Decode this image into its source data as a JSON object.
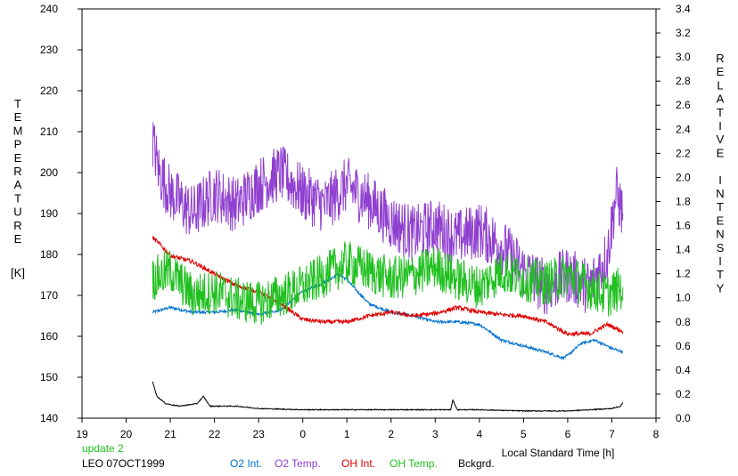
{
  "chart_data": {
    "type": "line",
    "xlabel": "Local Standard Time [h]",
    "ylabel_left": "TEMPERATURE",
    "ylabel_left_unit": "[K]",
    "ylabel_right": "RELATIVE INTENSITY",
    "x_ticks": [
      "19",
      "20",
      "21",
      "22",
      "23",
      "0",
      "1",
      "2",
      "3",
      "4",
      "5",
      "6",
      "7",
      "8"
    ],
    "y_left_ticks": [
      "140",
      "150",
      "160",
      "170",
      "180",
      "190",
      "200",
      "210",
      "220",
      "230",
      "240"
    ],
    "y_right_ticks": [
      "0.0",
      "0.2",
      "0.4",
      "0.6",
      "0.8",
      "1.0",
      "1.2",
      "1.4",
      "1.6",
      "1.8",
      "2.0",
      "2.2",
      "2.4",
      "2.6",
      "2.8",
      "3.0",
      "3.2",
      "3.4"
    ],
    "xlim": [
      19,
      32
    ],
    "ylim_left": [
      140,
      240
    ],
    "ylim_right": [
      0,
      3.4
    ],
    "series": [
      {
        "name": "O2 Int.",
        "axis": "right",
        "color": "#0070d0",
        "x": [
          20.6,
          21.0,
          21.5,
          22.0,
          22.5,
          23.0,
          23.5,
          24.0,
          24.5,
          24.8,
          25.0,
          25.5,
          26.0,
          26.5,
          27.0,
          27.5,
          28.0,
          28.5,
          29.0,
          29.5,
          29.9,
          30.0,
          30.3,
          30.6,
          31.0,
          31.25
        ],
        "y": [
          0.88,
          0.92,
          0.88,
          0.88,
          0.9,
          0.86,
          0.9,
          1.05,
          1.13,
          1.2,
          1.15,
          0.95,
          0.88,
          0.85,
          0.8,
          0.8,
          0.78,
          0.65,
          0.6,
          0.55,
          0.5,
          0.52,
          0.62,
          0.65,
          0.58,
          0.55
        ]
      },
      {
        "name": "O2 Temp.",
        "axis": "left",
        "color": "#9040d0",
        "x": [
          20.6,
          20.75,
          21.0,
          21.5,
          22.0,
          22.5,
          23.0,
          23.5,
          24.0,
          24.5,
          25.0,
          25.5,
          26.0,
          26.5,
          27.0,
          27.5,
          28.0,
          28.5,
          29.0,
          29.5,
          30.0,
          30.5,
          30.9,
          31.1,
          31.25
        ],
        "y": [
          208,
          200,
          195,
          190,
          195,
          192,
          197,
          200,
          195,
          192,
          197,
          193,
          188,
          185,
          187,
          184,
          186,
          182,
          176,
          172,
          175,
          172,
          180,
          195,
          190
        ]
      },
      {
        "name": "OH Int.",
        "axis": "right",
        "color": "#e00000",
        "x": [
          20.6,
          20.75,
          21.0,
          21.5,
          22.0,
          22.5,
          23.0,
          23.5,
          24.0,
          24.5,
          25.0,
          25.5,
          26.0,
          26.5,
          27.0,
          27.5,
          28.0,
          28.5,
          29.0,
          29.5,
          30.0,
          30.5,
          30.9,
          31.25
        ],
        "y": [
          1.5,
          1.45,
          1.35,
          1.3,
          1.2,
          1.1,
          1.05,
          0.95,
          0.82,
          0.8,
          0.8,
          0.85,
          0.88,
          0.85,
          0.87,
          0.92,
          0.88,
          0.86,
          0.85,
          0.8,
          0.7,
          0.7,
          0.78,
          0.72
        ]
      },
      {
        "name": "OH Temp.",
        "axis": "left",
        "color": "#20c020",
        "x": [
          20.6,
          21.0,
          21.5,
          22.0,
          22.5,
          23.0,
          23.5,
          24.0,
          24.5,
          25.0,
          25.5,
          26.0,
          26.5,
          27.0,
          27.5,
          28.0,
          28.5,
          29.0,
          29.5,
          30.0,
          30.5,
          30.9,
          31.25
        ],
        "y": [
          174,
          176,
          170,
          171,
          169,
          168,
          170,
          172,
          175,
          178,
          176,
          174,
          175,
          177,
          174,
          172,
          176,
          174,
          173,
          175,
          172,
          170,
          172
        ]
      },
      {
        "name": "Bckgrd.",
        "axis": "right",
        "color": "#000000",
        "x": [
          20.6,
          20.7,
          20.9,
          21.2,
          21.6,
          21.75,
          21.9,
          22.5,
          23.0,
          24.0,
          25.0,
          26.0,
          27.0,
          27.35,
          27.4,
          27.5,
          28.0,
          29.0,
          30.0,
          31.0,
          31.2,
          31.25
        ],
        "y": [
          0.3,
          0.18,
          0.12,
          0.1,
          0.12,
          0.18,
          0.1,
          0.1,
          0.08,
          0.07,
          0.07,
          0.07,
          0.07,
          0.07,
          0.15,
          0.07,
          0.07,
          0.06,
          0.06,
          0.08,
          0.1,
          0.13
        ]
      }
    ]
  },
  "legend": {
    "o2_int": "O2 Int.",
    "o2_temp": "O2 Temp.",
    "oh_int": "OH Int.",
    "oh_temp": "OH Temp.",
    "bckgrd": "Bckgrd."
  },
  "info": {
    "update": "update 2",
    "station": "LEO 07OCT1999"
  }
}
